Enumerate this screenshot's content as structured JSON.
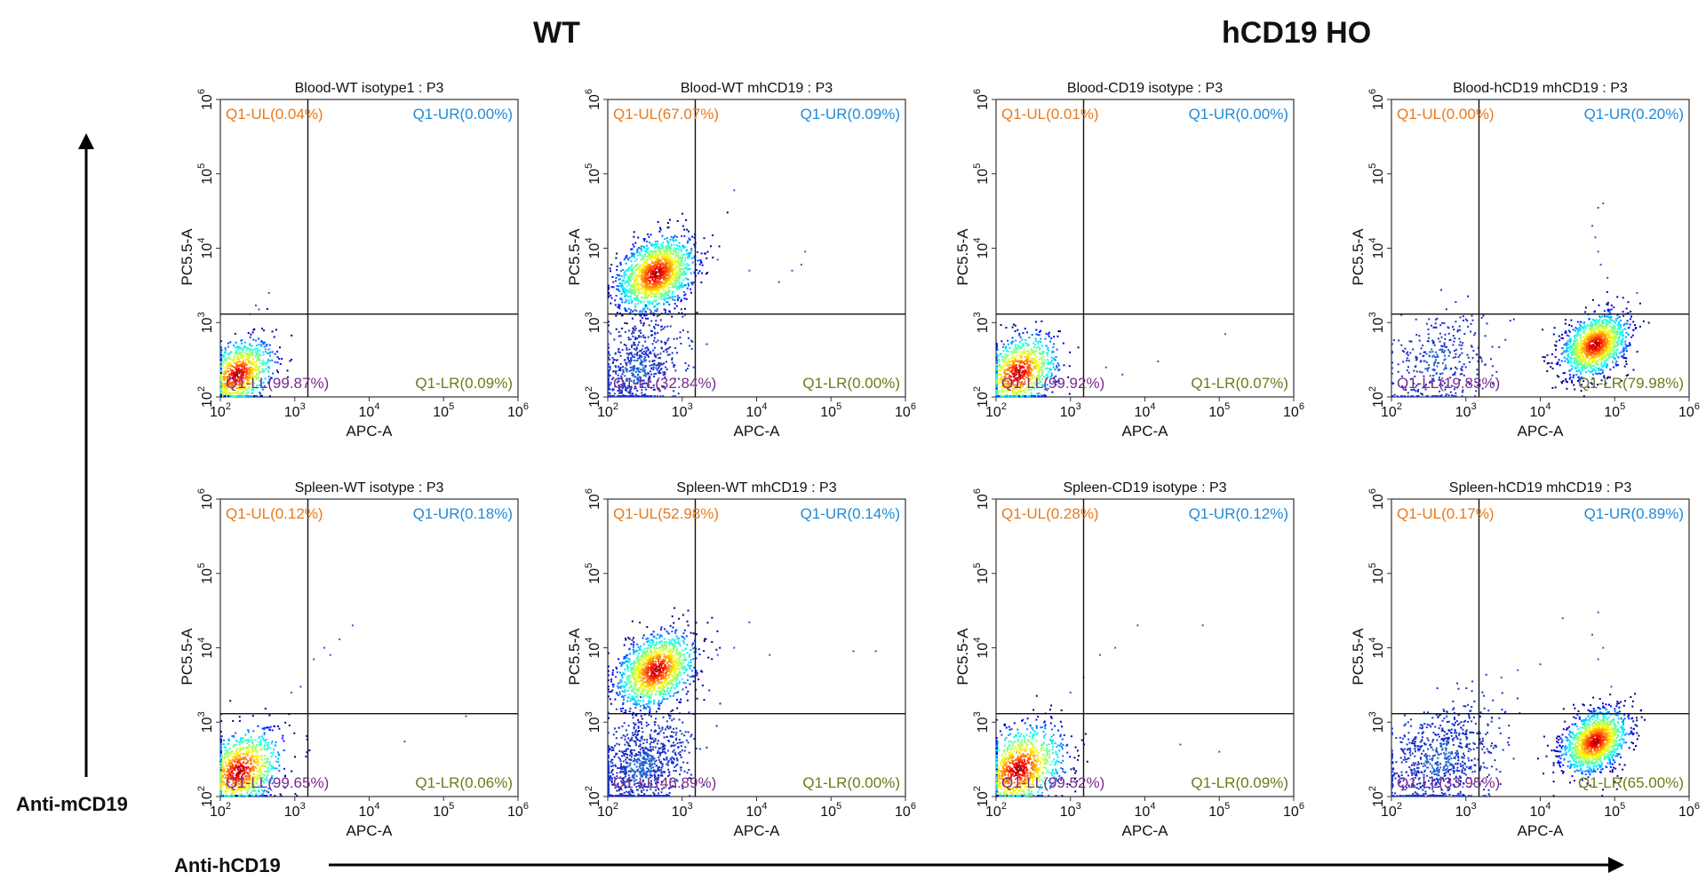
{
  "groups": [
    {
      "title": "WT"
    },
    {
      "title": "hCD19 HO"
    }
  ],
  "axis_labels": {
    "y_side": "Anti-mCD19",
    "x_bottom": "Anti-hCD19"
  },
  "colors": {
    "q_ul": "#e8791c",
    "q_ur": "#1f8ad8",
    "q_ll": "#7a2a8a",
    "q_lr": "#6b7a1a",
    "gate_line": "#111111"
  },
  "chart_data": [
    {
      "type": "scatter",
      "title": "Blood-WT isotype1 : P3",
      "xlabel": "APC-A",
      "ylabel": "PC5.5-A",
      "scale": "log",
      "xlim": [
        100,
        1000000
      ],
      "ylim": [
        100,
        1000000
      ],
      "x_ticks": [
        "10",
        "10",
        "10",
        "10",
        "10"
      ],
      "x_tick_exp": [
        "2",
        "3",
        "4",
        "5",
        "6"
      ],
      "y_tick_exp": [
        "2",
        "3",
        "4",
        "5",
        "6"
      ],
      "quadrants": {
        "UL": "Q1-UL(0.04%)",
        "UR": "Q1-UR(0.00%)",
        "LL": "Q1-LL(99.87%)",
        "LR": "Q1-LR(0.09%)"
      },
      "gate": {
        "x": 1500,
        "y": 1300
      },
      "populations": [
        {
          "cx": 170,
          "cy": 200,
          "spread": 0.22,
          "n": 900,
          "color": "jet"
        }
      ],
      "outliers": [
        [
          300,
          1700
        ],
        [
          450,
          2500
        ],
        [
          330,
          1500
        ],
        [
          250,
          1300
        ]
      ]
    },
    {
      "type": "scatter",
      "title": "Blood-WT mhCD19 : P3",
      "xlabel": "APC-A",
      "ylabel": "PC5.5-A",
      "scale": "log",
      "xlim": [
        100,
        1000000
      ],
      "ylim": [
        100,
        1000000
      ],
      "x_ticks": [
        "10",
        "10",
        "10",
        "10",
        "10"
      ],
      "x_tick_exp": [
        "2",
        "3",
        "4",
        "5",
        "6"
      ],
      "y_tick_exp": [
        "2",
        "3",
        "4",
        "5",
        "6"
      ],
      "quadrants": {
        "UL": "Q1-UL(67.07%)",
        "UR": "Q1-UR(0.09%)",
        "LL": "Q1-LL(32.84%)",
        "LR": "Q1-LR(0.00%)"
      },
      "gate": {
        "x": 1500,
        "y": 1300
      },
      "populations": [
        {
          "cx": 450,
          "cy": 4500,
          "spread": 0.24,
          "n": 1500,
          "color": "jet"
        },
        {
          "cx": 250,
          "cy": 230,
          "spread": 0.28,
          "n": 600,
          "color": "blue"
        }
      ],
      "outliers": [
        [
          5000,
          60000
        ],
        [
          30000,
          5000
        ],
        [
          40000,
          6000
        ],
        [
          45000,
          9000
        ],
        [
          20000,
          3500
        ],
        [
          3000,
          7000
        ],
        [
          8000,
          5000
        ]
      ]
    },
    {
      "type": "scatter",
      "title": "Blood-CD19 isotype : P3",
      "xlabel": "APC-A",
      "ylabel": "PC5.5-A",
      "scale": "log",
      "xlim": [
        100,
        1000000
      ],
      "ylim": [
        100,
        1000000
      ],
      "x_ticks": [
        "10",
        "10",
        "10",
        "10",
        "10"
      ],
      "x_tick_exp": [
        "2",
        "3",
        "4",
        "5",
        "6"
      ],
      "y_tick_exp": [
        "2",
        "3",
        "4",
        "5",
        "6"
      ],
      "quadrants": {
        "UL": "Q1-UL(0.01%)",
        "UR": "Q1-UR(0.00%)",
        "LL": "Q1-LL(99.92%)",
        "LR": "Q1-LR(0.07%)"
      },
      "gate": {
        "x": 1500,
        "y": 1300
      },
      "populations": [
        {
          "cx": 200,
          "cy": 210,
          "spread": 0.24,
          "n": 900,
          "color": "jet"
        }
      ],
      "outliers": [
        [
          3000,
          250
        ],
        [
          5000,
          200
        ],
        [
          15000,
          300
        ],
        [
          120000,
          700
        ]
      ]
    },
    {
      "type": "scatter",
      "title": "Blood-hCD19 mhCD19 : P3",
      "xlabel": "APC-A",
      "ylabel": "PC5.5-A",
      "scale": "log",
      "xlim": [
        100,
        1000000
      ],
      "ylim": [
        100,
        1000000
      ],
      "x_ticks": [
        "10",
        "10",
        "10",
        "10",
        "10"
      ],
      "x_tick_exp": [
        "2",
        "3",
        "4",
        "5",
        "6"
      ],
      "y_tick_exp": [
        "2",
        "3",
        "4",
        "5",
        "6"
      ],
      "quadrants": {
        "UL": "Q1-UL(0.00%)",
        "UR": "Q1-UR(0.20%)",
        "LL": "Q1-LL(19.83%)",
        "LR": "Q1-LR(79.98%)"
      },
      "gate": {
        "x": 1500,
        "y": 1300
      },
      "populations": [
        {
          "cx": 55000,
          "cy": 500,
          "spread": 0.2,
          "n": 1300,
          "color": "jet"
        },
        {
          "cx": 400,
          "cy": 300,
          "spread": 0.32,
          "n": 350,
          "color": "blue"
        }
      ],
      "outliers": [
        [
          60000,
          35000
        ],
        [
          70000,
          40000
        ],
        [
          50000,
          20000
        ],
        [
          60000,
          9000
        ],
        [
          65000,
          6000
        ],
        [
          80000,
          4000
        ],
        [
          200000,
          2500
        ],
        [
          55000,
          14000
        ]
      ]
    },
    {
      "type": "scatter",
      "title": "Spleen-WT isotype : P3",
      "xlabel": "APC-A",
      "ylabel": "PC5.5-A",
      "scale": "log",
      "xlim": [
        100,
        1000000
      ],
      "ylim": [
        100,
        1000000
      ],
      "x_ticks": [
        "10",
        "10",
        "10",
        "10",
        "10"
      ],
      "x_tick_exp": [
        "2",
        "3",
        "4",
        "5",
        "6"
      ],
      "y_tick_exp": [
        "2",
        "3",
        "4",
        "5",
        "6"
      ],
      "quadrants": {
        "UL": "Q1-UL(0.12%)",
        "UR": "Q1-UR(0.18%)",
        "LL": "Q1-LL(99.65%)",
        "LR": "Q1-LR(0.06%)"
      },
      "gate": {
        "x": 1500,
        "y": 1300
      },
      "populations": [
        {
          "cx": 180,
          "cy": 220,
          "spread": 0.26,
          "n": 1000,
          "color": "jet"
        }
      ],
      "outliers": [
        [
          2500,
          10000
        ],
        [
          4000,
          13000
        ],
        [
          6000,
          20000
        ],
        [
          1800,
          7000
        ],
        [
          1200,
          3000
        ],
        [
          900,
          2500
        ],
        [
          3000,
          8000
        ],
        [
          30000,
          550
        ],
        [
          200000,
          1200
        ]
      ]
    },
    {
      "type": "scatter",
      "title": "Spleen-WT mhCD19 : P3",
      "xlabel": "APC-A",
      "ylabel": "PC5.5-A",
      "scale": "log",
      "xlim": [
        100,
        1000000
      ],
      "ylim": [
        100,
        1000000
      ],
      "x_ticks": [
        "10",
        "10",
        "10",
        "10",
        "10"
      ],
      "x_tick_exp": [
        "2",
        "3",
        "4",
        "5",
        "6"
      ],
      "y_tick_exp": [
        "2",
        "3",
        "4",
        "5",
        "6"
      ],
      "quadrants": {
        "UL": "Q1-UL(52.98%)",
        "UR": "Q1-UR(0.14%)",
        "LL": "Q1-LL(46.89%)",
        "LR": "Q1-LR(0.00%)"
      },
      "gate": {
        "x": 1500,
        "y": 1300
      },
      "populations": [
        {
          "cx": 450,
          "cy": 5000,
          "spread": 0.24,
          "n": 1300,
          "color": "jet"
        },
        {
          "cx": 280,
          "cy": 250,
          "spread": 0.3,
          "n": 900,
          "color": "blue"
        }
      ],
      "outliers": [
        [
          8000,
          22000
        ],
        [
          3000,
          8000
        ],
        [
          15000,
          8000
        ],
        [
          200000,
          9000
        ],
        [
          400000,
          9000
        ],
        [
          5000,
          10000
        ]
      ]
    },
    {
      "type": "scatter",
      "title": "Spleen-CD19 isotype : P3",
      "xlabel": "APC-A",
      "ylabel": "PC5.5-A",
      "scale": "log",
      "xlim": [
        100,
        1000000
      ],
      "ylim": [
        100,
        1000000
      ],
      "x_ticks": [
        "10",
        "10",
        "10",
        "10",
        "10"
      ],
      "x_tick_exp": [
        "2",
        "3",
        "4",
        "5",
        "6"
      ],
      "y_tick_exp": [
        "2",
        "3",
        "4",
        "5",
        "6"
      ],
      "quadrants": {
        "UL": "Q1-UL(0.28%)",
        "UR": "Q1-UR(0.12%)",
        "LL": "Q1-LL(99.52%)",
        "LR": "Q1-LR(0.09%)"
      },
      "gate": {
        "x": 1500,
        "y": 1300
      },
      "populations": [
        {
          "cx": 200,
          "cy": 230,
          "spread": 0.28,
          "n": 1100,
          "color": "jet"
        }
      ],
      "outliers": [
        [
          1500,
          4000
        ],
        [
          2500,
          8000
        ],
        [
          8000,
          20000
        ],
        [
          4000,
          10000
        ],
        [
          1000,
          2500
        ],
        [
          60000,
          20000
        ],
        [
          30000,
          500
        ],
        [
          100000,
          400
        ]
      ]
    },
    {
      "type": "scatter",
      "title": "Spleen-hCD19 mhCD19 : P3",
      "xlabel": "APC-A",
      "ylabel": "PC5.5-A",
      "scale": "log",
      "xlim": [
        100,
        1000000
      ],
      "ylim": [
        100,
        1000000
      ],
      "x_ticks": [
        "10",
        "10",
        "10",
        "10",
        "10"
      ],
      "x_tick_exp": [
        "2",
        "3",
        "4",
        "5",
        "6"
      ],
      "y_tick_exp": [
        "2",
        "3",
        "4",
        "5",
        "6"
      ],
      "quadrants": {
        "UL": "Q1-UL(0.17%)",
        "UR": "Q1-UR(0.89%)",
        "LL": "Q1-LL(33.95%)",
        "LR": "Q1-LR(65.00%)"
      },
      "gate": {
        "x": 1500,
        "y": 1300
      },
      "populations": [
        {
          "cx": 55000,
          "cy": 550,
          "spread": 0.2,
          "n": 1300,
          "color": "jet"
        },
        {
          "cx": 450,
          "cy": 320,
          "spread": 0.35,
          "n": 800,
          "color": "blue"
        }
      ],
      "outliers": [
        [
          60000,
          30000
        ],
        [
          50000,
          15000
        ],
        [
          70000,
          10000
        ],
        [
          20000,
          25000
        ],
        [
          10000,
          6000
        ],
        [
          5000,
          5000
        ],
        [
          3000,
          4000
        ],
        [
          60000,
          7000
        ],
        [
          90000,
          3000
        ]
      ]
    }
  ]
}
